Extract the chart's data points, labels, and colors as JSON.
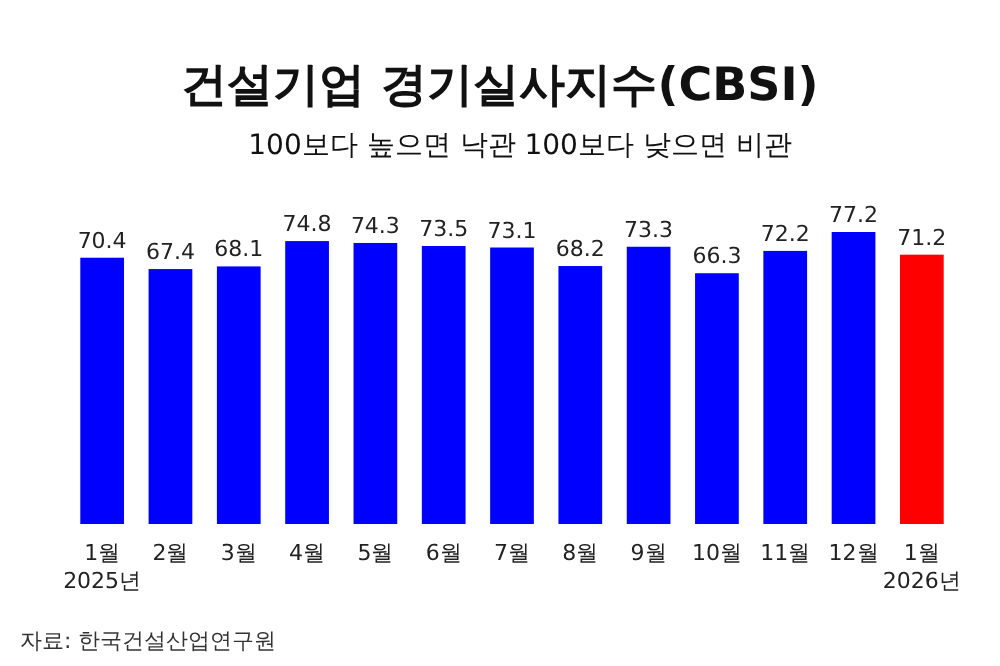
{
  "chart_data": {
    "type": "bar",
    "title": "건설기업 경기실사지수(CBSI)",
    "subtitle": "100보다 높으면 낙관 100보다 낮으면 비관",
    "categories": [
      "1월\n2025년",
      "2월",
      "3월",
      "4월",
      "5월",
      "6월",
      "7월",
      "8월",
      "9월",
      "10월",
      "11월",
      "12월",
      "1월\n2026년"
    ],
    "values": [
      70.4,
      67.4,
      68.1,
      74.8,
      74.3,
      73.5,
      73.1,
      68.2,
      73.3,
      66.3,
      72.2,
      77.2,
      71.2
    ],
    "colors": [
      "#0000ff",
      "#0000ff",
      "#0000ff",
      "#0000ff",
      "#0000ff",
      "#0000ff",
      "#0000ff",
      "#0000ff",
      "#0000ff",
      "#0000ff",
      "#0000ff",
      "#0000ff",
      "#ff0000"
    ],
    "data_labels": true,
    "annotations": [
      "자료: 한국건설산업연구원"
    ]
  }
}
